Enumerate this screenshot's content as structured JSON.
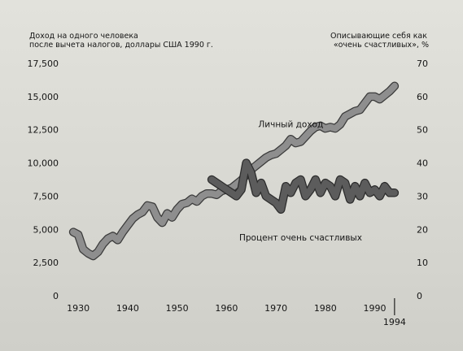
{
  "chart_data": {
    "type": "line",
    "y_left_label_line1": "Доход на одного человека",
    "y_left_label_line2": "после вычета налогов, доллары США 1990 г.",
    "y_right_label_line1": "Описывающие себя как",
    "y_right_label_line2": "«очень счастливых», %",
    "ylim_left": [
      0,
      17500
    ],
    "ylim_right": [
      0,
      70
    ],
    "xlim": [
      1928,
      1996
    ],
    "x_ticks": [
      "1930",
      "1940",
      "1950",
      "1960",
      "1970",
      "1980",
      "1990"
    ],
    "x_extra_tick": "1994",
    "y_left_ticks": [
      "0",
      "2,500",
      "5,000",
      "7,500",
      "10,000",
      "12,500",
      "15,000",
      "17,500"
    ],
    "y_right_ticks": [
      "0",
      "10",
      "20",
      "30",
      "40",
      "50",
      "60",
      "70"
    ],
    "series": [
      {
        "name": "Личный доход",
        "axis": "left",
        "x": [
          1929,
          1930,
          1931,
          1932,
          1933,
          1934,
          1935,
          1936,
          1937,
          1938,
          1939,
          1940,
          1941,
          1942,
          1943,
          1944,
          1945,
          1946,
          1947,
          1948,
          1949,
          1950,
          1951,
          1952,
          1953,
          1954,
          1955,
          1956,
          1957,
          1958,
          1959,
          1960,
          1961,
          1962,
          1963,
          1964,
          1965,
          1966,
          1967,
          1968,
          1969,
          1970,
          1971,
          1972,
          1973,
          1974,
          1975,
          1976,
          1977,
          1978,
          1979,
          1980,
          1981,
          1982,
          1983,
          1984,
          1985,
          1986,
          1987,
          1988,
          1989,
          1990,
          1991,
          1992,
          1993,
          1994
        ],
        "values": [
          4800,
          4600,
          3500,
          3200,
          3000,
          3300,
          3900,
          4300,
          4500,
          4200,
          4800,
          5300,
          5800,
          6100,
          6300,
          6800,
          6700,
          5900,
          5500,
          6200,
          5900,
          6500,
          6900,
          7000,
          7300,
          7100,
          7500,
          7700,
          7700,
          7600,
          7900,
          8000,
          8100,
          8400,
          8700,
          9100,
          9500,
          9800,
          10100,
          10400,
          10600,
          10700,
          11000,
          11300,
          11800,
          11500,
          11600,
          12000,
          12400,
          12700,
          12800,
          12600,
          12700,
          12600,
          12900,
          13500,
          13700,
          13900,
          14000,
          14500,
          15000,
          15000,
          14800,
          15100,
          15400,
          15800
        ]
      },
      {
        "name": "Процент очень счастливых",
        "axis": "right",
        "x": [
          1957,
          1958,
          1959,
          1960,
          1961,
          1962,
          1963,
          1964,
          1965,
          1966,
          1967,
          1968,
          1969,
          1970,
          1971,
          1972,
          1973,
          1974,
          1975,
          1976,
          1977,
          1978,
          1979,
          1980,
          1981,
          1982,
          1983,
          1984,
          1985,
          1986,
          1987,
          1988,
          1989,
          1990,
          1991,
          1992,
          1993,
          1994
        ],
        "values": [
          35,
          34,
          33,
          32,
          31,
          30,
          32,
          40,
          37,
          31,
          34,
          30,
          29,
          28,
          26,
          33,
          31,
          34,
          35,
          30,
          32,
          35,
          31,
          34,
          33,
          30,
          35,
          34,
          29,
          33,
          30,
          34,
          31,
          32,
          30,
          33,
          31,
          31
        ]
      }
    ],
    "annotations": [
      {
        "text": "Личный доход",
        "x": 1973,
        "y": 12700
      },
      {
        "text": "Процент очень счастливых",
        "x": 1975,
        "y": 4150
      }
    ]
  }
}
